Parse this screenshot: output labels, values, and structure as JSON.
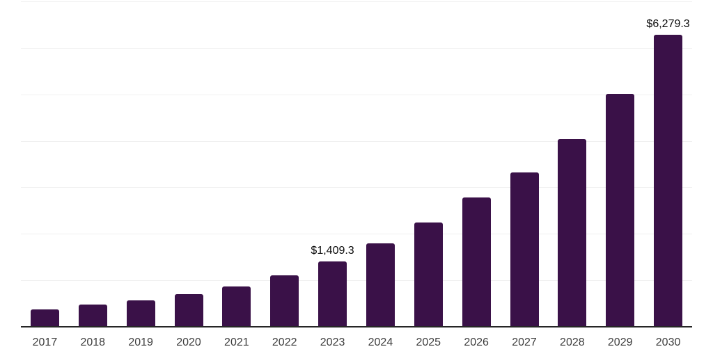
{
  "chart_data": {
    "type": "bar",
    "title": "",
    "xlabel": "",
    "ylabel": "",
    "categories": [
      "2017",
      "2018",
      "2019",
      "2020",
      "2021",
      "2022",
      "2023",
      "2024",
      "2025",
      "2026",
      "2027",
      "2028",
      "2029",
      "2030"
    ],
    "values": [
      380,
      478,
      575,
      710,
      875,
      1113,
      1409.3,
      1800,
      2240,
      2785,
      3325,
      4040,
      5010,
      6279.3
    ],
    "ylim": [
      0,
      7000
    ],
    "gridline_step": 1000,
    "grid": "horizontal",
    "legend": "none",
    "annotations": [
      {
        "category": "2023",
        "text": "$1,409.3"
      },
      {
        "category": "2030",
        "text": "$6,279.3"
      }
    ],
    "colors": {
      "bar": "#3a1148",
      "axis_line": "#262626",
      "gridline": "#f0f0f0",
      "tick_label": "#3d3d3d",
      "data_label": "#0a0a0a",
      "background": "#ffffff"
    }
  }
}
